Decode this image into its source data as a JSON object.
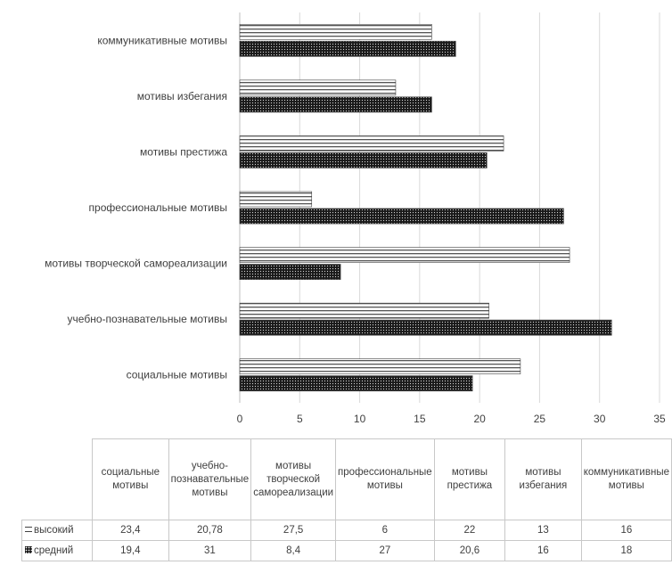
{
  "chart_data": {
    "type": "bar",
    "orientation": "horizontal",
    "categories": [
      "социальные мотивы",
      "учебно-познавательные мотивы",
      "мотивы творческой самореализации",
      "профессиональные мотивы",
      "мотивы престижа",
      "мотивы избегания",
      "коммуникативные мотивы"
    ],
    "table_headers": [
      "социальные мотивы",
      "учебно-познавательные мотивы",
      "мотивы творческой самореализации",
      "профессиональные мотивы",
      "мотивы престижа",
      "мотивы избегания",
      "коммуникативные мотивы"
    ],
    "series": [
      {
        "name": "высокий",
        "values": [
          23.4,
          20.78,
          27.5,
          6,
          22,
          13,
          16
        ],
        "display": [
          "23,4",
          "20,78",
          "27,5",
          "6",
          "22",
          "13",
          "16"
        ],
        "pattern": "horizontal-stripes"
      },
      {
        "name": "средний",
        "values": [
          19.4,
          31,
          8.4,
          27,
          20.6,
          16,
          18
        ],
        "display": [
          "19,4",
          "31",
          "8,4",
          "27",
          "20,6",
          "16",
          "18"
        ],
        "pattern": "dense-dots"
      }
    ],
    "x_ticks": [
      "0",
      "5",
      "10",
      "15",
      "20",
      "25",
      "30",
      "35"
    ],
    "xlim": [
      0,
      35
    ],
    "grid": "vertical",
    "legend": "data-table"
  }
}
